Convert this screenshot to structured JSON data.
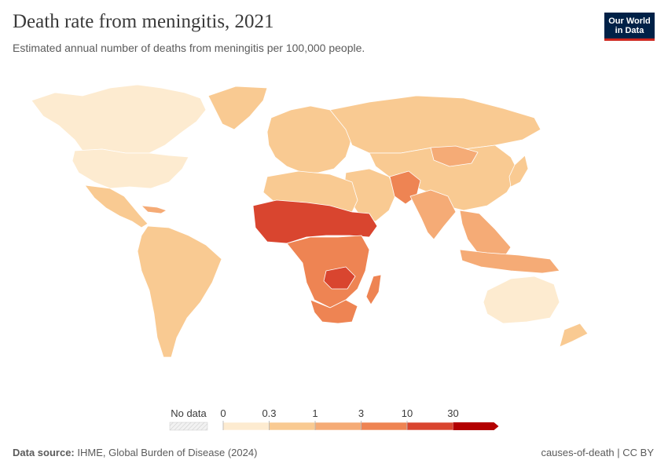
{
  "title": "Death rate from meningitis, 2021",
  "subtitle": "Estimated annual number of deaths from meningitis per 100,000 people.",
  "logo": {
    "line1": "Our World",
    "line2": "in Data"
  },
  "legend": {
    "no_data_label": "No data",
    "ticks": [
      "0",
      "0.3",
      "1",
      "3",
      "10",
      "30"
    ],
    "colors": [
      "#fdebd0",
      "#f9ca92",
      "#f5ab76",
      "#ee8453",
      "#d9452f",
      "#b30000"
    ]
  },
  "footer": {
    "source_label": "Data source:",
    "source_text": "IHME, Global Burden of Disease (2024)",
    "right_text": "causes-of-death | CC BY"
  },
  "colors": {
    "ocean": "#ffffff",
    "border": "#ffffff",
    "bin0": "#fdebd0",
    "bin1": "#f9ca92",
    "bin2": "#f5ab76",
    "bin3": "#ee8453",
    "bin4": "#d9452f",
    "bin5": "#b30000"
  }
}
